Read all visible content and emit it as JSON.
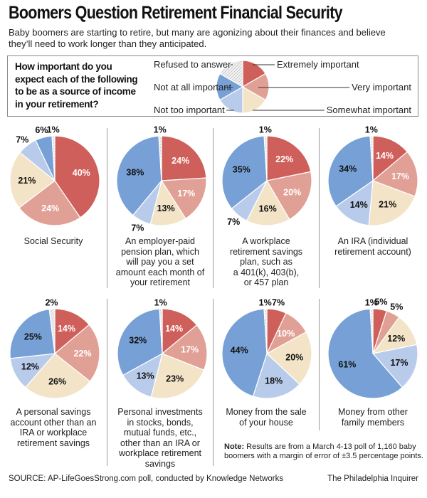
{
  "header": {
    "title": "Boomers Question Retirement Financial Security",
    "subtitle": "Baby boomers are starting to retire, but many are agonizing about their finances and believe they’ll need to work longer than they anticipated."
  },
  "legend": {
    "question": "How important do you expect each of the following to be as a source of income in your retirement?",
    "items": [
      {
        "key": "extremely",
        "label": "Extremely important",
        "color": "#cf5f5a"
      },
      {
        "key": "very",
        "label": "Very important",
        "color": "#e1a096"
      },
      {
        "key": "somewhat",
        "label": "Somewhat important",
        "color": "#f3e4c8"
      },
      {
        "key": "not_too",
        "label": "Not too important",
        "color": "#b8cbea"
      },
      {
        "key": "not_at_all",
        "label": "Not at all important",
        "color": "#76a0d6"
      },
      {
        "key": "refused",
        "label": "Refused to answer",
        "color": "#d9d9d9"
      }
    ]
  },
  "chart_data": {
    "type": "pie",
    "title": "Boomers Question Retirement Financial Security",
    "categories": [
      "Extremely important",
      "Very important",
      "Somewhat important",
      "Not too important",
      "Not at all important",
      "Refused to answer"
    ],
    "unit": "%",
    "series": [
      {
        "name": "Social Security",
        "values": [
          40,
          24,
          21,
          7,
          6,
          1
        ]
      },
      {
        "name": "An employer-paid pension plan, which will pay you a set amount each month of your retirement",
        "values": [
          24,
          17,
          13,
          7,
          38,
          1
        ]
      },
      {
        "name": "A workplace retirement savings plan, such as a 401(k), 403(b), or 457 plan",
        "values": [
          22,
          20,
          16,
          7,
          35,
          1
        ]
      },
      {
        "name": "An IRA (individual retirement account)",
        "values": [
          14,
          17,
          21,
          14,
          34,
          1
        ]
      },
      {
        "name": "A personal savings account other than an IRA or workplace retirement savings",
        "values": [
          14,
          22,
          26,
          12,
          25,
          2
        ]
      },
      {
        "name": "Personal investments in stocks, bonds, mutual funds, etc., other than an IRA or workplace retirement savings",
        "values": [
          14,
          17,
          23,
          13,
          32,
          1
        ]
      },
      {
        "name": "Money from the sale of your house",
        "values": [
          7,
          10,
          20,
          18,
          44,
          1
        ]
      },
      {
        "name": "Money from other family members",
        "values": [
          5,
          5,
          12,
          17,
          61,
          1
        ]
      }
    ]
  },
  "captions": [
    "Social Security",
    "An employer-paid\npension plan, which\nwill pay you a set\namount each month of\nyour retirement",
    "A workplace\nretirement savings\nplan, such as\na 401(k), 403(b),\nor 457 plan",
    "An IRA (individual\nretirement account)",
    "A personal savings\naccount other than an\nIRA or workplace\nretirement savings",
    "Personal investments\nin stocks, bonds,\nmutual funds, etc.,\nother than an IRA or\nworkplace retirement\nsavings",
    "Money from the sale\nof your house",
    "Money from other\nfamily members"
  ],
  "footer": {
    "note_label": "Note:",
    "note_text": " Results are from a March 4-13 poll of 1,160 baby boomers with a margin of error of ±3.5 percentage points.",
    "source": "SOURCE: AP-LifeGoesStrong.com poll, conducted by Knowledge Networks",
    "credit": "The Philadelphia Inquirer"
  }
}
